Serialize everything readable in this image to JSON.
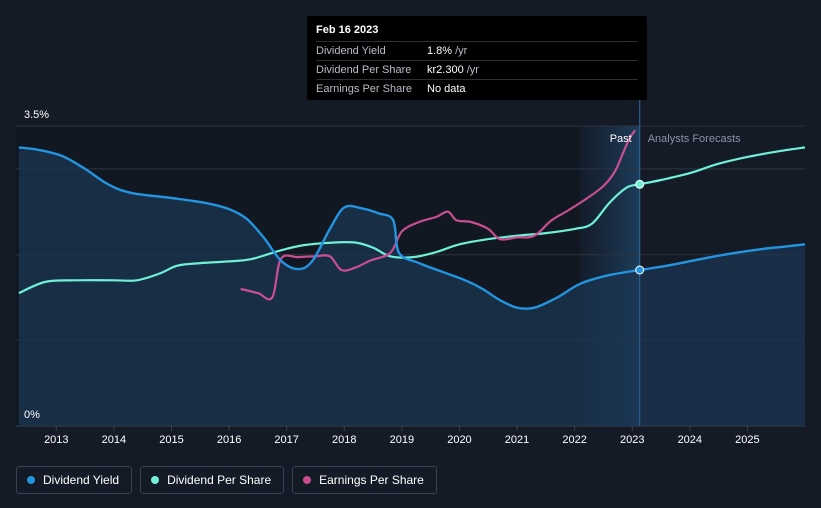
{
  "colors": {
    "dividend_yield": "#2394df",
    "dividend_per_share": "#6ff0d7",
    "earnings_per_share": "#c84f8f",
    "background": "#151b26",
    "grid": "#2c3340"
  },
  "tooltip": {
    "date": "Feb 16 2023",
    "rows": [
      {
        "label": "Dividend Yield",
        "value": "1.8%",
        "unit": "/yr"
      },
      {
        "label": "Dividend Per Share",
        "value": "kr2.300",
        "unit": "/yr"
      },
      {
        "label": "Earnings Per Share",
        "value": "No data"
      }
    ]
  },
  "regions": {
    "past_label": "Past",
    "forecast_label": "Analysts Forecasts"
  },
  "legend": [
    {
      "label": "Dividend Yield",
      "color": "#2394df"
    },
    {
      "label": "Dividend Per Share",
      "color": "#6ff0d7"
    },
    {
      "label": "Earnings Per Share",
      "color": "#c84f8f"
    }
  ],
  "chart_data": {
    "type": "line",
    "title": "",
    "xlabel": "",
    "ylabel": "",
    "xlim": [
      2012.3,
      2026.0
    ],
    "ylim": [
      0,
      3.5
    ],
    "y_ticks": [
      {
        "value": 0,
        "label": "0%"
      },
      {
        "value": 3.5,
        "label": "3.5%"
      }
    ],
    "x_ticks": [
      2013,
      2014,
      2015,
      2016,
      2017,
      2018,
      2019,
      2020,
      2021,
      2022,
      2023,
      2024,
      2025
    ],
    "x_tick_labels": [
      "2013",
      "2014",
      "2015",
      "2016",
      "2017",
      "2018",
      "2019",
      "2020",
      "2021",
      "2022",
      "2023",
      "2024",
      "2025"
    ],
    "past_region_start": 2022.1,
    "current_date": 2023.13,
    "series": [
      {
        "name": "Dividend Yield",
        "axis_units": "percent",
        "values": [
          [
            2012.35,
            3.25
          ],
          [
            2012.7,
            3.22
          ],
          [
            2013.1,
            3.15
          ],
          [
            2013.5,
            3.0
          ],
          [
            2013.9,
            2.82
          ],
          [
            2014.3,
            2.72
          ],
          [
            2015.0,
            2.66
          ],
          [
            2015.6,
            2.6
          ],
          [
            2016.0,
            2.53
          ],
          [
            2016.3,
            2.42
          ],
          [
            2016.6,
            2.2
          ],
          [
            2016.9,
            1.93
          ],
          [
            2017.2,
            1.83
          ],
          [
            2017.45,
            1.93
          ],
          [
            2017.75,
            2.3
          ],
          [
            2018.0,
            2.55
          ],
          [
            2018.3,
            2.54
          ],
          [
            2018.6,
            2.48
          ],
          [
            2018.85,
            2.4
          ],
          [
            2018.95,
            2.02
          ],
          [
            2019.3,
            1.9
          ],
          [
            2019.7,
            1.8
          ],
          [
            2020.1,
            1.7
          ],
          [
            2020.4,
            1.6
          ],
          [
            2020.7,
            1.47
          ],
          [
            2021.0,
            1.38
          ],
          [
            2021.3,
            1.38
          ],
          [
            2021.7,
            1.5
          ],
          [
            2022.1,
            1.66
          ],
          [
            2022.6,
            1.76
          ],
          [
            2023.13,
            1.82
          ],
          [
            2023.6,
            1.87
          ],
          [
            2024.2,
            1.95
          ],
          [
            2024.7,
            2.01
          ],
          [
            2025.2,
            2.06
          ],
          [
            2025.6,
            2.09
          ],
          [
            2026.0,
            2.12
          ]
        ]
      },
      {
        "name": "Dividend Per Share",
        "axis_units": "relative",
        "values": [
          [
            2012.35,
            1.55
          ],
          [
            2012.8,
            1.68
          ],
          [
            2013.3,
            1.7
          ],
          [
            2014.0,
            1.7
          ],
          [
            2014.4,
            1.7
          ],
          [
            2014.8,
            1.78
          ],
          [
            2015.1,
            1.87
          ],
          [
            2015.5,
            1.9
          ],
          [
            2016.0,
            1.92
          ],
          [
            2016.4,
            1.95
          ],
          [
            2016.9,
            2.05
          ],
          [
            2017.3,
            2.11
          ],
          [
            2017.8,
            2.14
          ],
          [
            2018.2,
            2.14
          ],
          [
            2018.5,
            2.08
          ],
          [
            2018.8,
            1.98
          ],
          [
            2019.2,
            1.97
          ],
          [
            2019.6,
            2.03
          ],
          [
            2020.0,
            2.12
          ],
          [
            2020.5,
            2.18
          ],
          [
            2021.0,
            2.22
          ],
          [
            2021.5,
            2.25
          ],
          [
            2022.0,
            2.3
          ],
          [
            2022.3,
            2.36
          ],
          [
            2022.6,
            2.6
          ],
          [
            2022.9,
            2.78
          ],
          [
            2023.13,
            2.82
          ],
          [
            2023.5,
            2.87
          ],
          [
            2024.0,
            2.95
          ],
          [
            2024.5,
            3.06
          ],
          [
            2025.0,
            3.14
          ],
          [
            2025.5,
            3.2
          ],
          [
            2026.0,
            3.25
          ]
        ]
      },
      {
        "name": "Earnings Per Share",
        "axis_units": "relative",
        "values": [
          [
            2016.2,
            1.6
          ],
          [
            2016.5,
            1.55
          ],
          [
            2016.75,
            1.5
          ],
          [
            2016.9,
            1.95
          ],
          [
            2017.2,
            1.97
          ],
          [
            2017.5,
            1.98
          ],
          [
            2017.75,
            1.98
          ],
          [
            2017.95,
            1.82
          ],
          [
            2018.2,
            1.85
          ],
          [
            2018.45,
            1.93
          ],
          [
            2018.8,
            2.02
          ],
          [
            2019.0,
            2.27
          ],
          [
            2019.3,
            2.38
          ],
          [
            2019.6,
            2.44
          ],
          [
            2019.8,
            2.5
          ],
          [
            2019.95,
            2.4
          ],
          [
            2020.2,
            2.38
          ],
          [
            2020.5,
            2.3
          ],
          [
            2020.7,
            2.18
          ],
          [
            2021.0,
            2.2
          ],
          [
            2021.3,
            2.22
          ],
          [
            2021.6,
            2.4
          ],
          [
            2021.9,
            2.52
          ],
          [
            2022.2,
            2.65
          ],
          [
            2022.5,
            2.8
          ],
          [
            2022.7,
            2.97
          ],
          [
            2022.85,
            3.2
          ],
          [
            2022.95,
            3.35
          ],
          [
            2023.05,
            3.45
          ]
        ]
      }
    ]
  }
}
